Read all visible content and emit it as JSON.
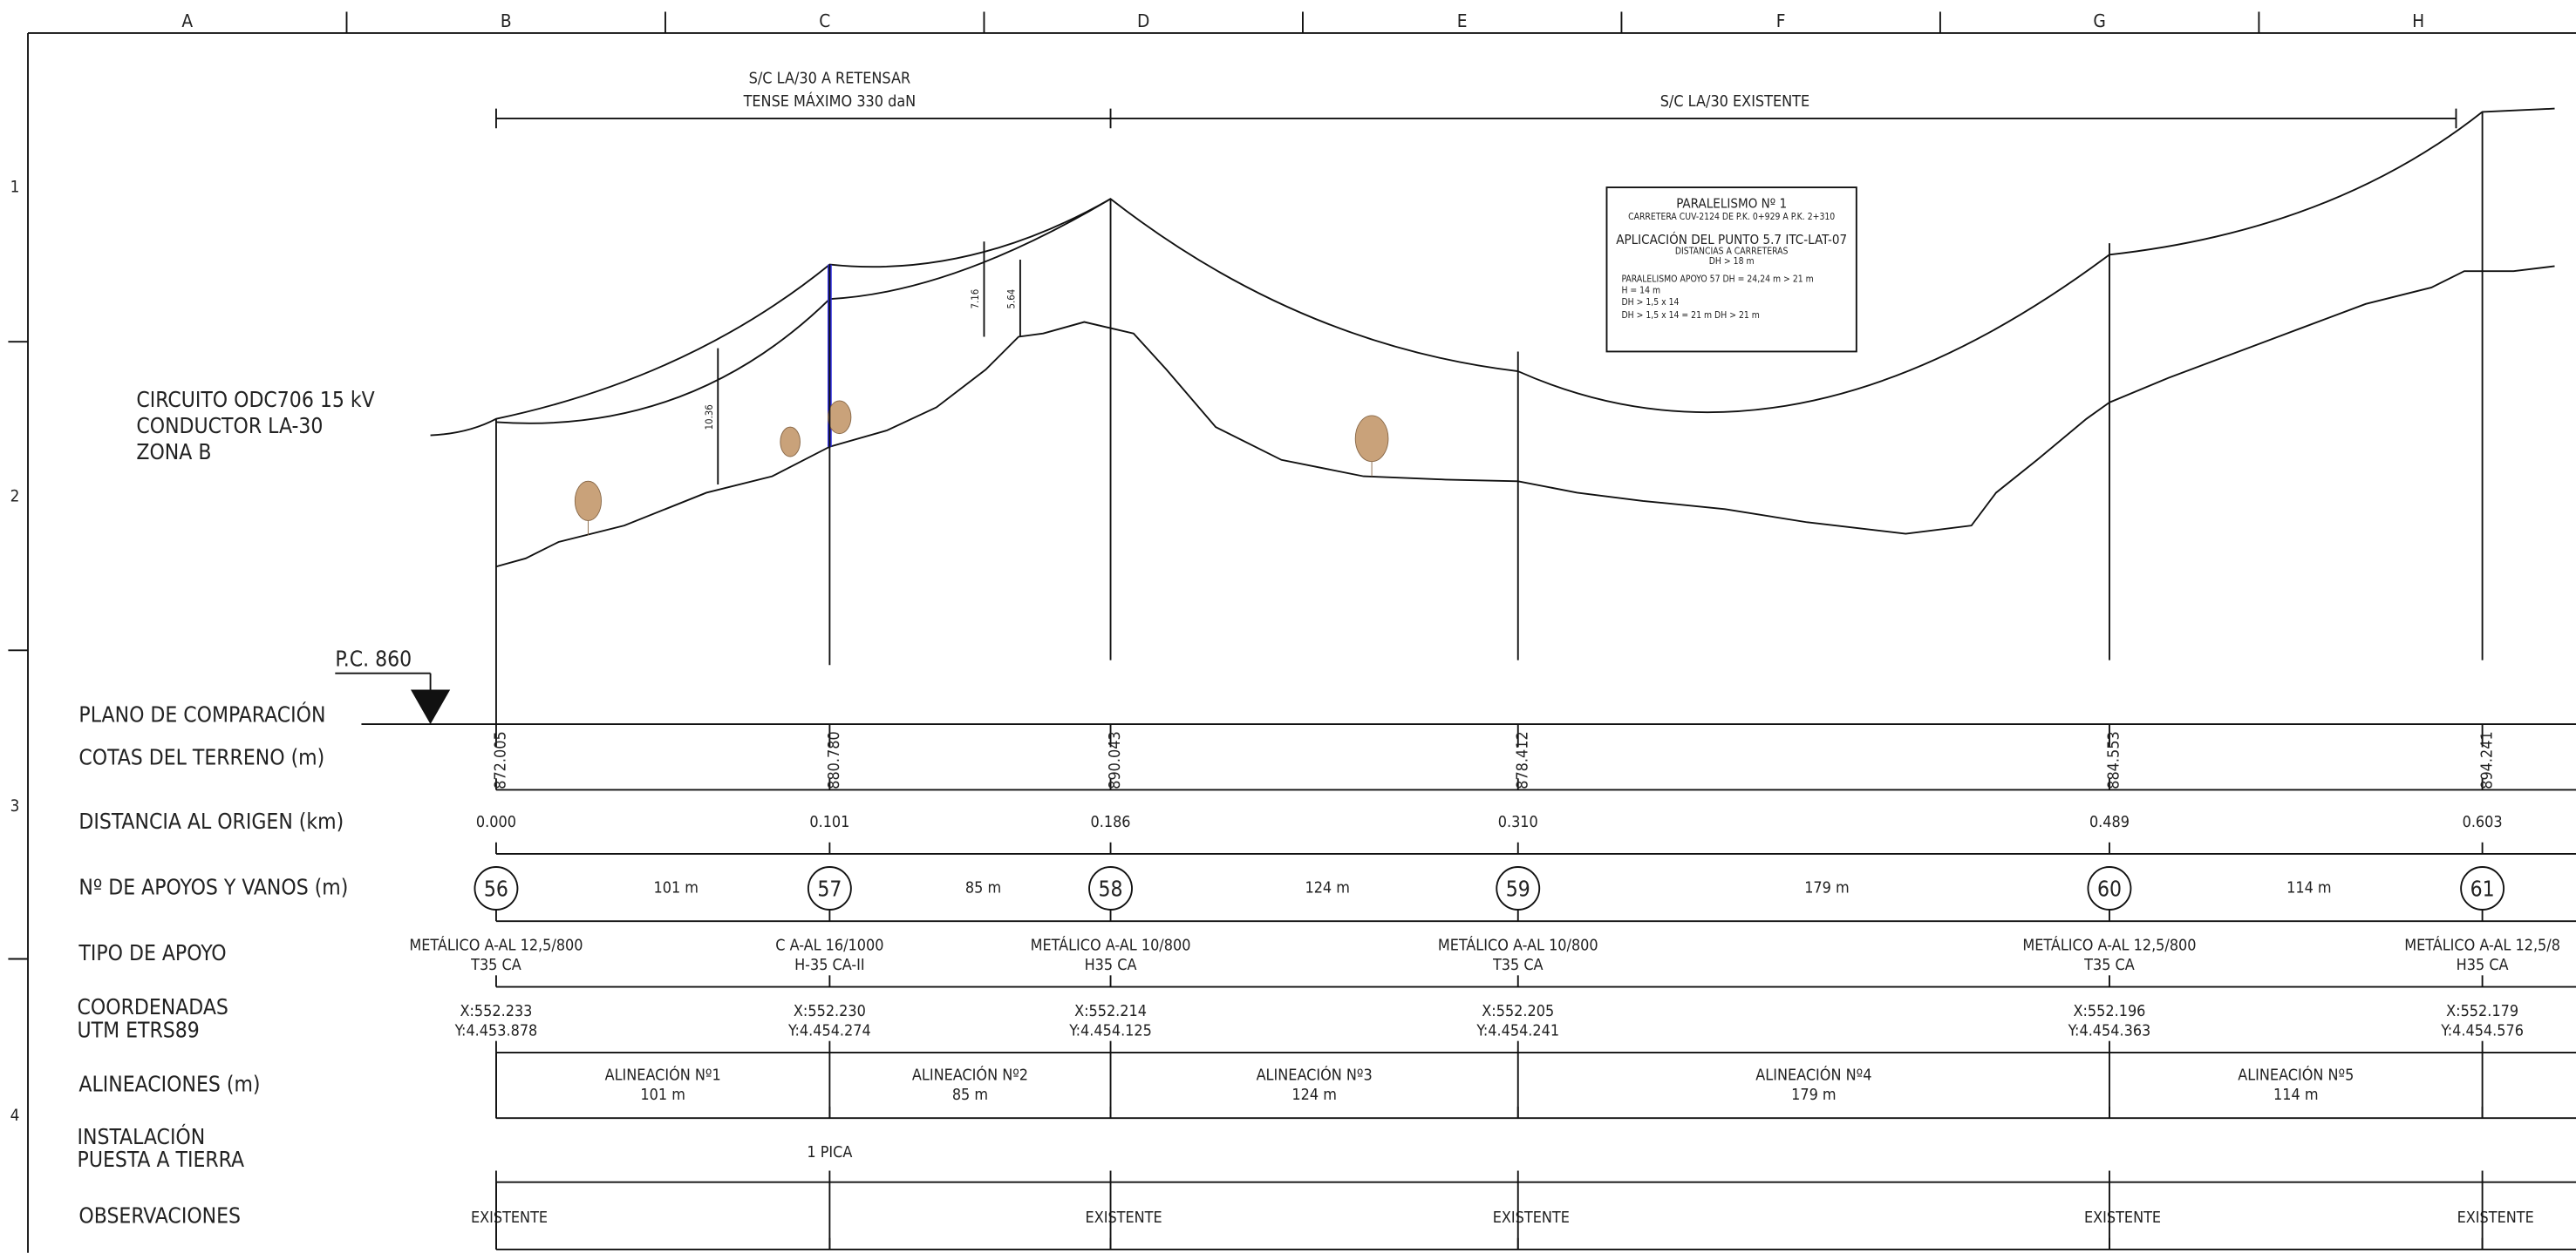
{
  "grid": {
    "columns": [
      "A",
      "B",
      "C",
      "D",
      "E",
      "F",
      "G",
      "H"
    ],
    "rows": [
      "1",
      "2",
      "3",
      "4"
    ]
  },
  "spans": [
    {
      "lines": [
        "S/C LA/30 A RETENSAR",
        "TENSE MÁXIMO 330 daN"
      ]
    },
    {
      "lines": [
        "S/C LA/30  EXISTENTE"
      ]
    }
  ],
  "circuit": [
    "CIRCUITO ODC706  15 kV",
    "CONDUCTOR LA-30",
    "ZONA B"
  ],
  "note": [
    "PARALELISMO Nº 1",
    "CARRETERA CUV-2124 DE P.K. 0+929 A P.K. 2+310",
    "APLICACIÓN DEL PUNTO 5.7 ITC-LAT-07",
    "DISTANCIAS A CARRETERAS",
    "DH >  18 m",
    "PARALELISMO APOYO 57  DH = 24,24 m > 21 m",
    "H = 14 m",
    "DH >  1,5 x 14",
    "DH >  1,5 x 14 = 21 m     DH > 21 m"
  ],
  "clearances": [
    "10.36",
    "7.16",
    "5.64"
  ],
  "reference": "P.C. 860",
  "table": {
    "row_labels": [
      "PLANO DE COMPARACIÓN",
      "COTAS DEL TERRENO (m)",
      "DISTANCIA AL ORIGEN (km)",
      "Nº DE APOYOS Y VANOS (m)",
      "TIPO DE APOYO",
      [
        "COORDENADAS",
        "UTM ETRS89"
      ],
      "ALINEACIONES (m)",
      [
        "INSTALACIÓN",
        "PUESTA A TIERRA"
      ],
      "OBSERVACIONES"
    ],
    "supports": [
      {
        "number": "56",
        "elevation": "872.005",
        "distance": "0.000",
        "type": [
          "METÁLICO A-AL 12,5/800",
          "T35 CA"
        ],
        "coords": [
          "X:552.233",
          "Y:4.453.878"
        ],
        "earthing": null,
        "remarks": "EXISTENTE"
      },
      {
        "number": "57",
        "elevation": "880.780",
        "distance": "0.101",
        "type": [
          "C A-AL 16/1000",
          "H-35 CA-II"
        ],
        "coords": [
          "X:552.230",
          "Y:4.454.274"
        ],
        "earthing": "1 PICA",
        "remarks": null
      },
      {
        "number": "58",
        "elevation": "890.043",
        "distance": "0.186",
        "type": [
          "METÁLICO A-AL 10/800",
          "H35 CA"
        ],
        "coords": [
          "X:552.214",
          "Y:4.454.125"
        ],
        "earthing": null,
        "remarks": "EXISTENTE"
      },
      {
        "number": "59",
        "elevation": "878.412",
        "distance": "0.310",
        "type": [
          "METÁLICO A-AL 10/800",
          "T35 CA"
        ],
        "coords": [
          "X:552.205",
          "Y:4.454.241"
        ],
        "earthing": null,
        "remarks": "EXISTENTE"
      },
      {
        "number": "60",
        "elevation": "884.553",
        "distance": "0.489",
        "type": [
          "METÁLICO A-AL 12,5/800",
          "T35 CA"
        ],
        "coords": [
          "X:552.196",
          "Y:4.454.363"
        ],
        "earthing": null,
        "remarks": "EXISTENTE"
      },
      {
        "number": "61",
        "elevation": "894.241",
        "distance": "0.603",
        "type": [
          "METÁLICO A-AL 12,5/8",
          "H35 CA"
        ],
        "coords": [
          "X:552.179",
          "Y:4.454.576"
        ],
        "earthing": null,
        "remarks": "EXISTENTE"
      }
    ],
    "spans": [
      "101 m",
      "85 m",
      "124 m",
      "179 m",
      "114 m"
    ],
    "alignments": [
      [
        "ALINEACIÓN Nº1",
        "101 m"
      ],
      [
        "ALINEACIÓN Nº2",
        "85 m"
      ],
      [
        "ALINEACIÓN Nº3",
        "124 m"
      ],
      [
        "ALINEACIÓN Nº4",
        "179 m"
      ],
      [
        "ALINEACIÓN Nº5",
        "114 m"
      ]
    ]
  }
}
